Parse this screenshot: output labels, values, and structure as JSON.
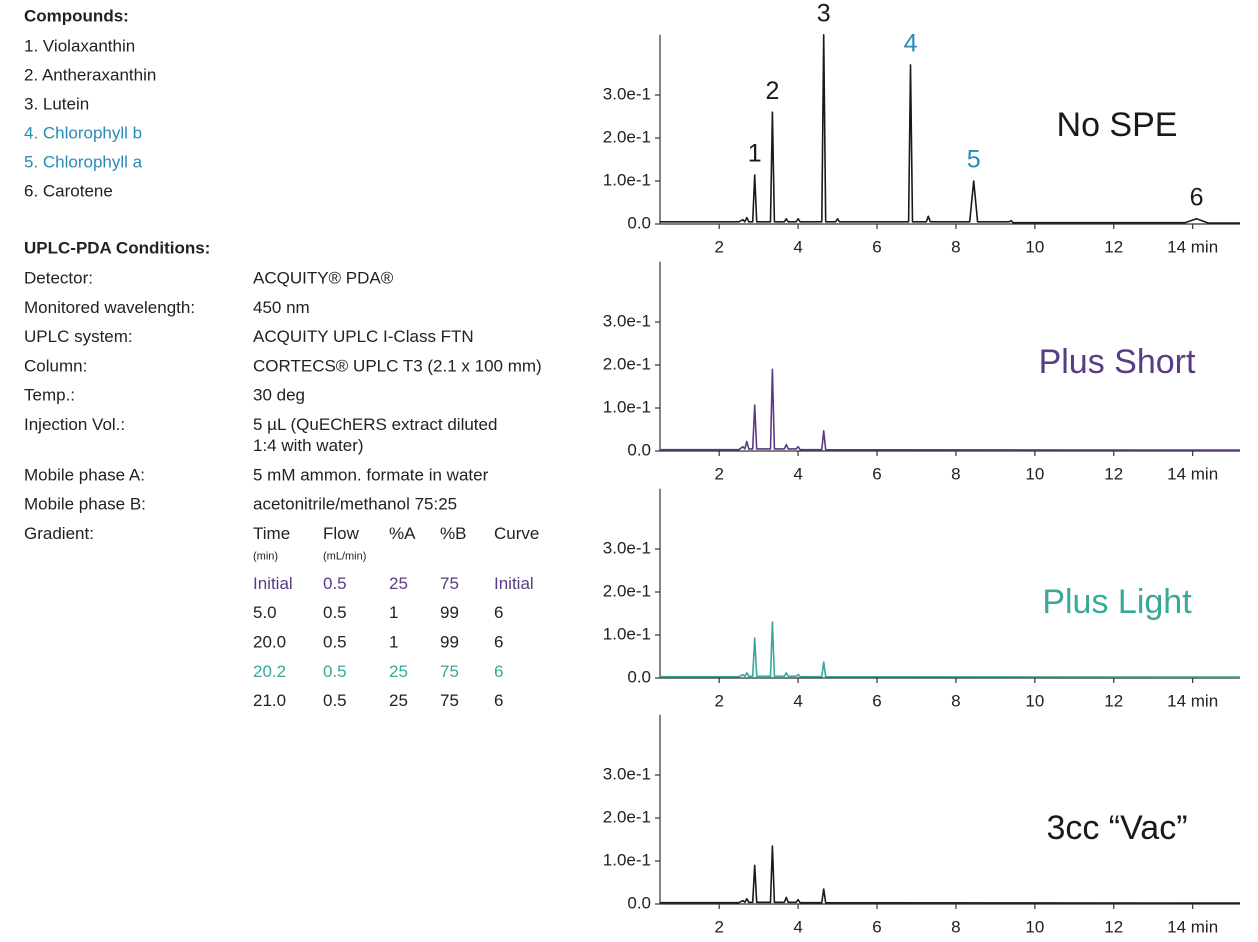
{
  "compounds": {
    "heading": "Compounds:",
    "items": [
      {
        "text": "1. Violaxanthin",
        "color": "#222222"
      },
      {
        "text": "2. Antheraxanthin",
        "color": "#222222"
      },
      {
        "text": "3. Lutein",
        "color": "#222222"
      },
      {
        "text": "4. Chlorophyll b",
        "color": "#2a8ab8"
      },
      {
        "text": "5. Chlorophyll a",
        "color": "#2a8ab8"
      },
      {
        "text": "6. Carotene",
        "color": "#222222"
      }
    ]
  },
  "conditions": {
    "heading": "UPLC-PDA Conditions:",
    "rows": [
      {
        "label": "Detector:",
        "value": [
          "ACQUITY® PDA®"
        ]
      },
      {
        "label": "Monitored wavelength:",
        "value": [
          "450 nm"
        ]
      },
      {
        "label": "UPLC system:",
        "value": [
          "ACQUITY UPLC I-Class FTN"
        ]
      },
      {
        "label": "Column:",
        "value": [
          "CORTECS® UPLC T3 (2.1 x 100 mm)"
        ]
      },
      {
        "label": "Temp.:",
        "value": [
          "30 deg"
        ]
      },
      {
        "label": "Injection Vol.:",
        "value": [
          "5 µL (QuEChERS extract diluted",
          "1:4 with water)"
        ]
      },
      {
        "label": "Mobile phase A:",
        "value": [
          "5 mM ammon. formate in water"
        ]
      },
      {
        "label": "Mobile phase B:",
        "value": [
          "acetonitrile/methanol 75:25"
        ]
      }
    ]
  },
  "gradient": {
    "label": "Gradient:",
    "columns": [
      {
        "name": "Time",
        "unit": "(min)"
      },
      {
        "name": "Flow",
        "unit": "(mL/min)"
      },
      {
        "name": "%A"
      },
      {
        "name": "%B"
      },
      {
        "name": "Curve"
      }
    ],
    "rows": [
      {
        "cells": [
          "Initial",
          "0.5",
          "25",
          "75",
          "Initial"
        ],
        "color": "#5b3a86"
      },
      {
        "cells": [
          "5.0",
          "0.5",
          "1",
          "99",
          "6"
        ],
        "color": "#222222"
      },
      {
        "cells": [
          "20.0",
          "0.5",
          "1",
          "99",
          "6"
        ],
        "color": "#222222"
      },
      {
        "cells": [
          "20.2",
          "0.5",
          "25",
          "75",
          "6"
        ],
        "color": "#3aa899"
      },
      {
        "cells": [
          "21.0",
          "0.5",
          "25",
          "75",
          "6"
        ],
        "color": "#222222"
      }
    ]
  },
  "chart_data": [
    {
      "type": "line",
      "title": "No SPE",
      "color": "#1a1a1a",
      "x": [
        0.5,
        2.5,
        2.6,
        2.65,
        2.7,
        2.75,
        2.85,
        2.9,
        2.95,
        3.3,
        3.35,
        3.4,
        3.65,
        3.7,
        3.75,
        3.95,
        4.0,
        4.05,
        4.6,
        4.65,
        4.7,
        4.95,
        5.0,
        5.05,
        6.8,
        6.85,
        6.9,
        7.25,
        7.3,
        7.35,
        8.35,
        8.45,
        8.55,
        9.35,
        9.4,
        9.45,
        13.8,
        14.1,
        14.4,
        15.2
      ],
      "values": [
        0.005,
        0.005,
        0.01,
        0.005,
        0.015,
        0.005,
        0.005,
        0.114,
        0.005,
        0.005,
        0.26,
        0.005,
        0.005,
        0.012,
        0.005,
        0.005,
        0.012,
        0.005,
        0.005,
        0.44,
        0.005,
        0.005,
        0.012,
        0.005,
        0.005,
        0.37,
        0.005,
        0.005,
        0.018,
        0.005,
        0.005,
        0.1,
        0.005,
        0.005,
        0.008,
        0.003,
        0.003,
        0.012,
        0.002,
        0.002
      ],
      "xlim": [
        0.5,
        15.2
      ],
      "ylim": [
        0,
        0.44
      ],
      "xticks": [
        2,
        4,
        6,
        8,
        10,
        12,
        {
          "value": 14,
          "label": "14 min"
        }
      ],
      "yticks": [
        {
          "value": 0,
          "label": "0.0"
        },
        {
          "value": 0.1,
          "label": "1.0e-1"
        },
        {
          "value": 0.2,
          "label": "2.0e-1"
        },
        {
          "value": 0.3,
          "label": "3.0e-1"
        }
      ],
      "annotations": [
        {
          "text": "1",
          "x": 2.9,
          "color": "#1a1a1a"
        },
        {
          "text": "2",
          "x": 3.35,
          "color": "#1a1a1a"
        },
        {
          "text": "3",
          "x": 4.65,
          "color": "#1a1a1a"
        },
        {
          "text": "4",
          "x": 6.85,
          "color": "#2a8ab8"
        },
        {
          "text": "5",
          "x": 8.45,
          "color": "#2a8ab8"
        },
        {
          "text": "6",
          "x": 14.1,
          "color": "#1a1a1a"
        }
      ]
    },
    {
      "type": "line",
      "title": "Plus Short",
      "color": "#5b3a86",
      "x": [
        0.5,
        2.5,
        2.6,
        2.65,
        2.7,
        2.75,
        2.85,
        2.9,
        2.95,
        3.3,
        3.35,
        3.4,
        3.65,
        3.7,
        3.75,
        3.95,
        4.0,
        4.05,
        4.6,
        4.65,
        4.7,
        15.2
      ],
      "values": [
        0.003,
        0.003,
        0.01,
        0.005,
        0.022,
        0.005,
        0.005,
        0.107,
        0.005,
        0.005,
        0.19,
        0.005,
        0.005,
        0.015,
        0.005,
        0.005,
        0.01,
        0.003,
        0.003,
        0.047,
        0.003,
        0.002
      ],
      "xlim": [
        0.5,
        15.2
      ],
      "ylim": [
        0,
        0.44
      ],
      "xticks": [
        2,
        4,
        6,
        8,
        10,
        12,
        {
          "value": 14,
          "label": "14 min"
        }
      ],
      "yticks": [
        {
          "value": 0,
          "label": "0.0"
        },
        {
          "value": 0.1,
          "label": "1.0e-1"
        },
        {
          "value": 0.2,
          "label": "2.0e-1"
        },
        {
          "value": 0.3,
          "label": "3.0e-1"
        }
      ]
    },
    {
      "type": "line",
      "title": "Plus Light",
      "color": "#3aa899",
      "x": [
        0.5,
        2.5,
        2.6,
        2.65,
        2.7,
        2.75,
        2.85,
        2.9,
        2.95,
        3.3,
        3.35,
        3.4,
        3.65,
        3.7,
        3.75,
        3.95,
        4.0,
        4.05,
        4.6,
        4.65,
        4.7,
        15.2
      ],
      "values": [
        0.003,
        0.003,
        0.008,
        0.004,
        0.012,
        0.004,
        0.004,
        0.093,
        0.004,
        0.004,
        0.13,
        0.004,
        0.004,
        0.012,
        0.004,
        0.004,
        0.008,
        0.003,
        0.003,
        0.037,
        0.003,
        0.002
      ],
      "xlim": [
        0.5,
        15.2
      ],
      "ylim": [
        0,
        0.44
      ],
      "xticks": [
        2,
        4,
        6,
        8,
        10,
        12,
        {
          "value": 14,
          "label": "14 min"
        }
      ],
      "yticks": [
        {
          "value": 0,
          "label": "0.0"
        },
        {
          "value": 0.1,
          "label": "1.0e-1"
        },
        {
          "value": 0.2,
          "label": "2.0e-1"
        },
        {
          "value": 0.3,
          "label": "3.0e-1"
        }
      ]
    },
    {
      "type": "line",
      "title": "3cc “Vac”",
      "color": "#1a1a1a",
      "x": [
        0.5,
        2.5,
        2.6,
        2.65,
        2.7,
        2.75,
        2.85,
        2.9,
        2.95,
        3.3,
        3.35,
        3.4,
        3.65,
        3.7,
        3.75,
        3.95,
        4.0,
        4.05,
        4.6,
        4.65,
        4.7,
        15.2
      ],
      "values": [
        0.003,
        0.003,
        0.008,
        0.004,
        0.012,
        0.004,
        0.004,
        0.09,
        0.004,
        0.004,
        0.135,
        0.004,
        0.004,
        0.015,
        0.004,
        0.004,
        0.01,
        0.003,
        0.003,
        0.035,
        0.003,
        0.002
      ],
      "xlim": [
        0.5,
        15.2
      ],
      "ylim": [
        0,
        0.44
      ],
      "xticks": [
        2,
        4,
        6,
        8,
        10,
        12,
        {
          "value": 14,
          "label": "14 min"
        }
      ],
      "yticks": [
        {
          "value": 0,
          "label": "0.0"
        },
        {
          "value": 0.1,
          "label": "1.0e-1"
        },
        {
          "value": 0.2,
          "label": "2.0e-1"
        },
        {
          "value": 0.3,
          "label": "3.0e-1"
        }
      ]
    }
  ]
}
